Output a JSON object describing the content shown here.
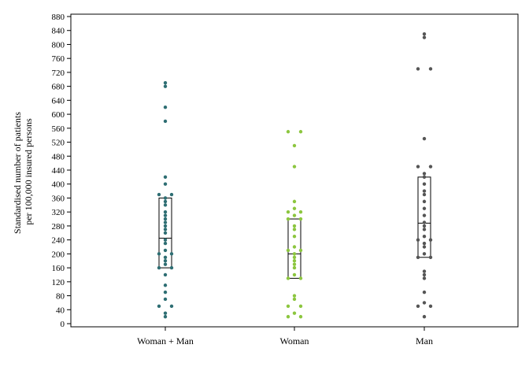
{
  "chart_data": {
    "type": "scatter",
    "subtype": "dot-strip with box (quartiles and median)",
    "title": "",
    "ylabel_lines": [
      "Standardised number of patients",
      "per 100,000 insured persons"
    ],
    "xlabel": "",
    "ylim": [
      0,
      880
    ],
    "ytick_step": 40,
    "yticks": [
      "0",
      "40",
      "80",
      "120",
      "160",
      "200",
      "240",
      "280",
      "320",
      "360",
      "400",
      "440",
      "480",
      "520",
      "560",
      "600",
      "640",
      "680",
      "720",
      "760",
      "800",
      "840",
      "880"
    ],
    "grid": false,
    "categories": [
      "Woman + Man",
      "Woman",
      "Man"
    ],
    "series": [
      {
        "category": "Woman + Man",
        "color": "#2e6e73",
        "box": {
          "q1": 160,
          "median": 245,
          "q3": 360
        },
        "values": [
          690,
          680,
          620,
          580,
          420,
          400,
          370,
          370,
          360,
          350,
          340,
          320,
          310,
          300,
          290,
          280,
          270,
          260,
          240,
          230,
          210,
          200,
          200,
          190,
          180,
          170,
          160,
          160,
          140,
          110,
          90,
          70,
          50,
          50,
          30,
          20
        ]
      },
      {
        "category": "Woman",
        "color": "#8cc63f",
        "box": {
          "q1": 130,
          "median": 200,
          "q3": 300
        },
        "values": [
          550,
          550,
          510,
          450,
          350,
          330,
          320,
          320,
          310,
          300,
          300,
          280,
          270,
          250,
          220,
          210,
          210,
          200,
          190,
          180,
          170,
          160,
          140,
          130,
          130,
          80,
          70,
          50,
          50,
          30,
          20,
          20
        ]
      },
      {
        "category": "Man",
        "color": "#555555",
        "box": {
          "q1": 190,
          "median": 288,
          "q3": 420
        },
        "values": [
          830,
          820,
          730,
          730,
          530,
          450,
          450,
          430,
          420,
          400,
          380,
          370,
          350,
          330,
          310,
          290,
          280,
          270,
          250,
          240,
          240,
          230,
          220,
          200,
          190,
          190,
          150,
          140,
          130,
          90,
          60,
          50,
          50,
          20
        ]
      }
    ]
  }
}
